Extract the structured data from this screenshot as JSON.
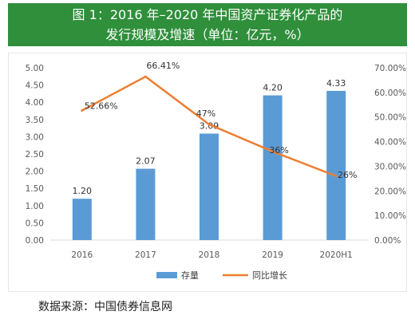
{
  "title": {
    "line1": "图 1：2016 年–2020 年中国资产证券化产品的",
    "line2": "发行规模及增速（单位：亿元，%）"
  },
  "source": "数据来源：中国债券信息网",
  "colors": {
    "banner": "#2f8f3b",
    "bar": "#5b9bd5",
    "line": "#ed7d31"
  },
  "chart_data": {
    "type": "bar",
    "categories": [
      "2016",
      "2017",
      "2018",
      "2019",
      "2020H1"
    ],
    "series": [
      {
        "name": "存量",
        "type": "bar",
        "axis": "left",
        "values": [
          1.2,
          2.07,
          3.09,
          4.2,
          4.33
        ],
        "labels": [
          "1.20",
          "2.07",
          "3.09",
          "4.20",
          "4.33"
        ]
      },
      {
        "name": "同比增长",
        "type": "line",
        "axis": "right",
        "values": [
          52.66,
          66.41,
          47,
          36,
          26
        ],
        "labels": [
          "52.66%",
          "66.41%",
          "47%",
          "36%",
          "26%"
        ]
      }
    ],
    "y_left": {
      "min": 0,
      "max": 5,
      "ticks": [
        "0.00",
        "0.50",
        "1.00",
        "1.50",
        "2.00",
        "2.50",
        "3.00",
        "3.50",
        "4.00",
        "4.50",
        "5.00"
      ]
    },
    "y_right": {
      "min": 0,
      "max": 70,
      "ticks": [
        "0.00%",
        "10.00%",
        "20.00%",
        "30.00%",
        "40.00%",
        "50.00%",
        "60.00%",
        "70.00%"
      ]
    },
    "legend_position": "bottom",
    "grid": false
  }
}
